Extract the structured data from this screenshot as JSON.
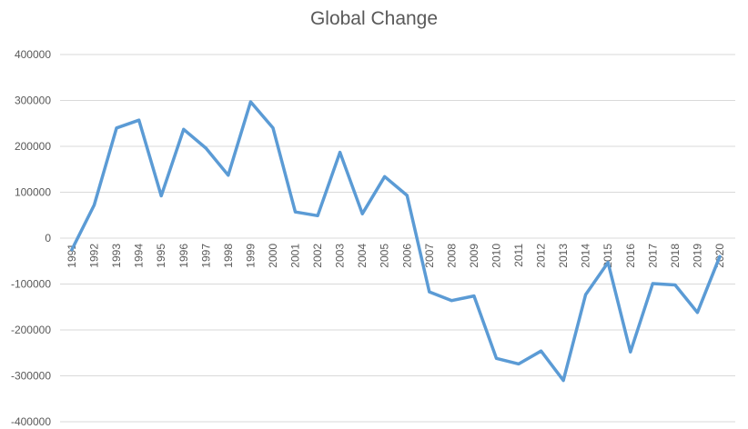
{
  "chart_data": {
    "type": "line",
    "title": "Global Change",
    "xlabel": "",
    "ylabel": "",
    "ylim": [
      -400000,
      400000
    ],
    "y_ticks": [
      400000,
      300000,
      200000,
      100000,
      0,
      -100000,
      -200000,
      -300000,
      -400000
    ],
    "y_tick_labels": [
      "400000",
      "300000",
      "200000",
      "100000",
      "0",
      "-100000",
      "-200000",
      "-300000",
      "-400000"
    ],
    "grid": true,
    "legend": "none",
    "categories": [
      "1991",
      "1992",
      "1993",
      "1994",
      "1995",
      "1996",
      "1997",
      "1998",
      "1999",
      "2000",
      "2001",
      "2002",
      "2003",
      "2004",
      "2005",
      "2006",
      "2007",
      "2008",
      "2009",
      "2010",
      "2011",
      "2012",
      "2013",
      "2014",
      "2015",
      "2016",
      "2017",
      "2018",
      "2019",
      "2020"
    ],
    "series": [
      {
        "color": "#5b9bd5",
        "values": [
          -25000,
          72000,
          240000,
          257000,
          92000,
          237000,
          196000,
          137000,
          297000,
          240000,
          57000,
          49000,
          187000,
          53000,
          134000,
          93000,
          -117000,
          -136000,
          -126000,
          -262000,
          -274000,
          -246000,
          -310000,
          -123000,
          -53000,
          -248000,
          -99000,
          -102000,
          -162000,
          -40000
        ]
      }
    ]
  }
}
